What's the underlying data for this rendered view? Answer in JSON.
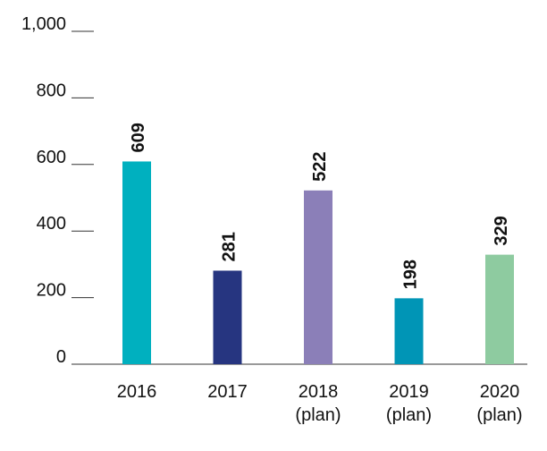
{
  "chart_data": {
    "type": "bar",
    "categories": [
      "2016",
      "2017",
      "2018 (plan)",
      "2019 (plan)",
      "2020 (plan)"
    ],
    "values": [
      609,
      281,
      522,
      198,
      329
    ],
    "colors": [
      "#00b0bf",
      "#263580",
      "#8b7fb8",
      "#0095b6",
      "#8ecba0"
    ],
    "ylim": [
      0,
      1000
    ],
    "yticks": [
      0,
      200,
      400,
      600,
      800,
      {
        "value": 1000,
        "label": "1,000"
      }
    ]
  }
}
